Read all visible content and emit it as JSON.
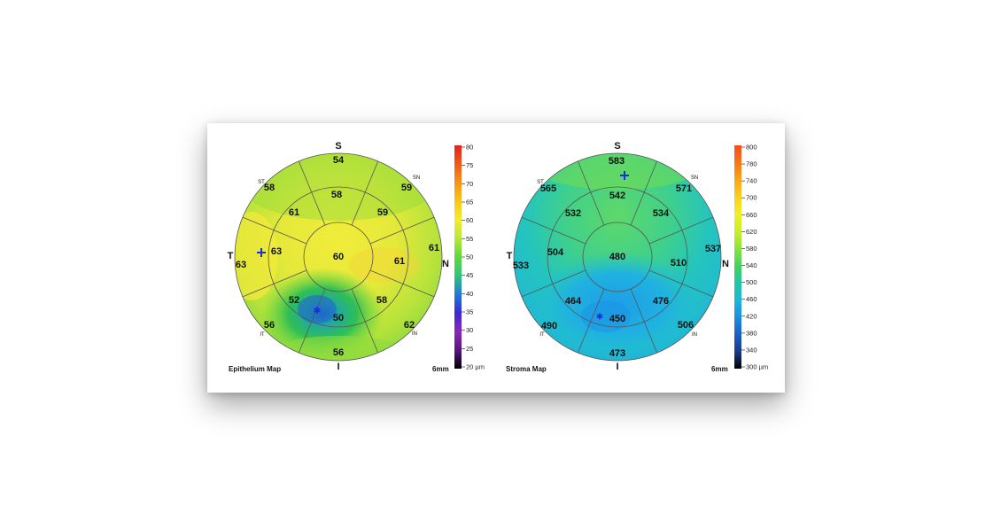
{
  "maps": [
    {
      "id": "epithelium",
      "caption": "Epithelium Map",
      "scale_label": "6mm",
      "orientation": {
        "superior": "S",
        "inferior": "I",
        "temporal": "T",
        "nasal": "N",
        "sup_temporal": "ST",
        "sup_nasal": "SN",
        "inf_temporal": "IT",
        "inf_nasal": "IN"
      },
      "center": "60",
      "inner": {
        "S": "58",
        "SN": "59",
        "N": "61",
        "IN": "58",
        "I": "50",
        "IT": "52",
        "T": "63",
        "ST": "61"
      },
      "outer": {
        "S": "54",
        "SN": "59",
        "N": "61",
        "IN": "62",
        "I": "56",
        "IT": "56",
        "T": "63",
        "ST": "58"
      },
      "colorbar": {
        "min": 20,
        "max": 80,
        "unit": "µm",
        "ticks": [
          "80",
          "75",
          "70",
          "65",
          "60",
          "55",
          "50",
          "45",
          "40",
          "35",
          "30",
          "25",
          "20 µm"
        ],
        "colors": [
          "#e21f1f",
          "#ee5a1a",
          "#f7921a",
          "#f9c41c",
          "#f2ec2e",
          "#b8e83a",
          "#5fd63e",
          "#2fc77a",
          "#1e79d6",
          "#3b2ad1",
          "#8a26b9",
          "#5a1780",
          "#000000"
        ]
      },
      "minimum_marker": "blue star",
      "thinnest_marker": "blue cross"
    },
    {
      "id": "stroma",
      "caption": "Stroma Map",
      "scale_label": "6mm",
      "orientation": {
        "superior": "S",
        "inferior": "I",
        "temporal": "T",
        "nasal": "N",
        "sup_temporal": "ST",
        "sup_nasal": "SN",
        "inf_temporal": "IT",
        "inf_nasal": "IN"
      },
      "center": "480",
      "inner": {
        "S": "542",
        "SN": "534",
        "N": "510",
        "IN": "476",
        "I": "450",
        "IT": "464",
        "T": "504",
        "ST": "532"
      },
      "outer": {
        "S": "583",
        "SN": "571",
        "N": "537",
        "IN": "506",
        "I": "473",
        "IT": "490",
        "T": "533",
        "ST": "565"
      },
      "colorbar": {
        "min": 300,
        "max": 800,
        "unit": "µm",
        "ticks": [
          "800",
          "780",
          "740",
          "700",
          "660",
          "620",
          "580",
          "540",
          "500",
          "460",
          "420",
          "380",
          "340",
          "300 µm"
        ],
        "colors": [
          "#f24f1c",
          "#f7761a",
          "#f9a51b",
          "#f9cf20",
          "#eef02a",
          "#c9ee2d",
          "#8ce33c",
          "#44d35c",
          "#22c6a0",
          "#1fb7d6",
          "#1f8fe0",
          "#1d5fc4",
          "#193a8e",
          "#000000"
        ]
      },
      "minimum_marker": "blue star",
      "thinnest_marker": "blue cross"
    }
  ]
}
